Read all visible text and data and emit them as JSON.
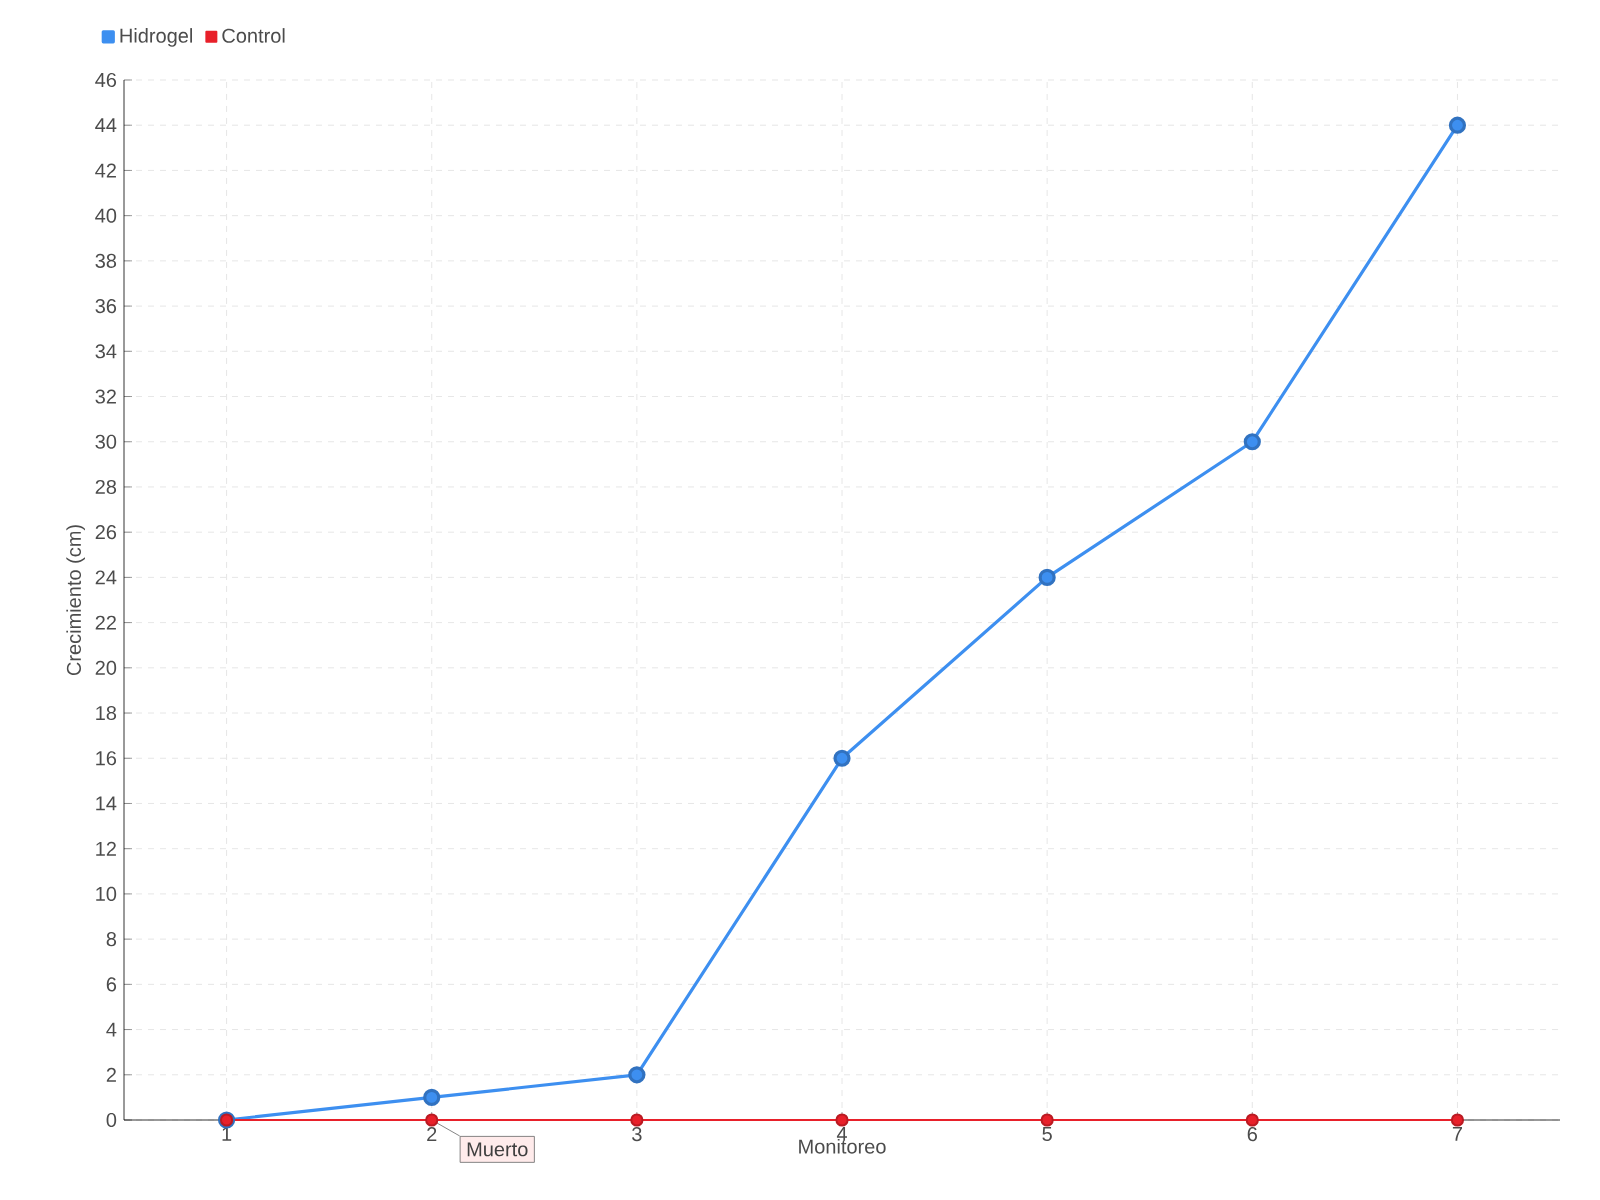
{
  "chart_data": {
    "type": "line",
    "xlabel": "Monitoreo",
    "ylabel": "Crecimiento (cm)",
    "categories": [
      "1",
      "2",
      "3",
      "4",
      "5",
      "6",
      "7"
    ],
    "series": [
      {
        "name": "Hidrogel",
        "color": "#3d8ff0",
        "values": [
          0,
          1,
          2,
          16,
          24,
          30,
          44
        ]
      },
      {
        "name": "Control",
        "color": "#e8202a",
        "values": [
          0,
          0,
          0,
          0,
          0,
          0,
          0
        ]
      }
    ],
    "ylim": [
      0,
      46
    ],
    "yticks": [
      0,
      2,
      4,
      6,
      8,
      10,
      12,
      14,
      16,
      18,
      20,
      22,
      24,
      26,
      28,
      30,
      32,
      34,
      36,
      38,
      40,
      42,
      44,
      46
    ],
    "annotations": [
      {
        "text": "Muerto",
        "x": "2",
        "y": 0
      }
    ],
    "grid": true,
    "legend": "top left",
    "marker": "circle",
    "line_style": "solid"
  }
}
